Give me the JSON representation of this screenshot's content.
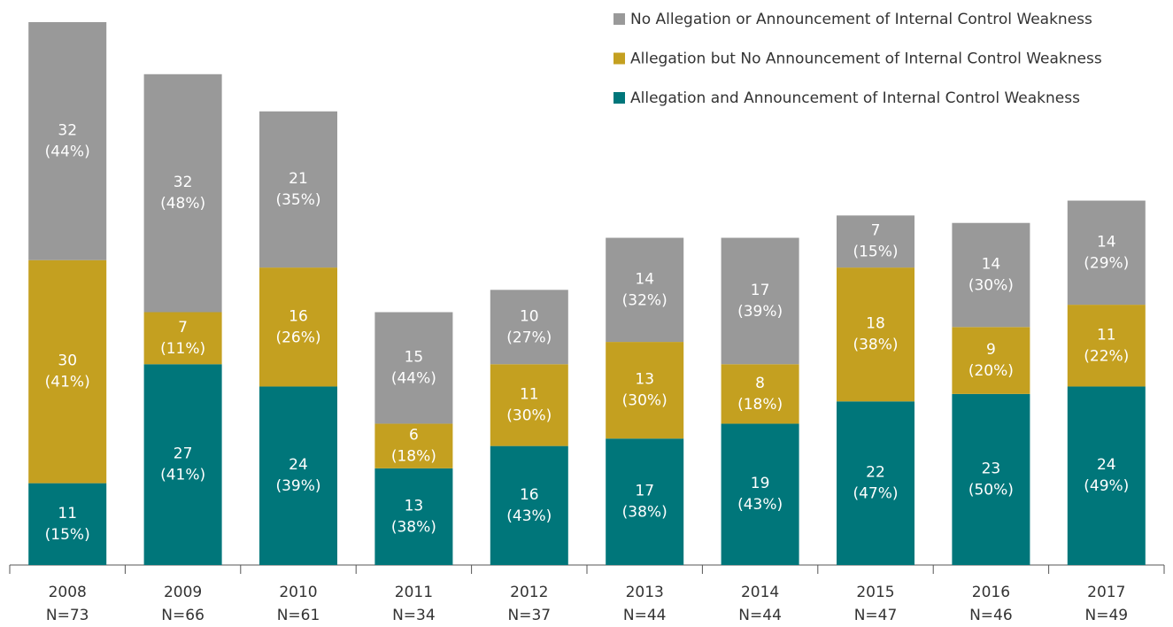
{
  "chart_data": {
    "type": "stacked_bar",
    "categories": [
      "2008",
      "2009",
      "2010",
      "2011",
      "2012",
      "2013",
      "2014",
      "2015",
      "2016",
      "2017"
    ],
    "n_labels": [
      "N=73",
      "N=66",
      "N=61",
      "N=34",
      "N=37",
      "N=44",
      "N=44",
      "N=47",
      "N=46",
      "N=49"
    ],
    "series": [
      {
        "name": "Allegation and Announcement of Internal Control Weakness",
        "color": "#00767a",
        "values": [
          11,
          27,
          24,
          13,
          16,
          17,
          19,
          22,
          23,
          24
        ],
        "share_labels": [
          "(15%)",
          "(41%)",
          "(39%)",
          "(38%)",
          "(43%)",
          "(38%)",
          "(43%)",
          "(47%)",
          "(50%)",
          "(49%)"
        ]
      },
      {
        "name": "Allegation but No Announcement of Internal Control Weakness",
        "color": "#c4a020",
        "values": [
          30,
          7,
          16,
          6,
          11,
          13,
          8,
          18,
          9,
          11
        ],
        "share_labels": [
          "(41%)",
          "(11%)",
          "(26%)",
          "(18%)",
          "(30%)",
          "(30%)",
          "(18%)",
          "(38%)",
          "(20%)",
          "(22%)"
        ]
      },
      {
        "name": "No Allegation or Announcement of Internal Control Weakness",
        "color": "#999999",
        "values": [
          32,
          32,
          21,
          15,
          10,
          14,
          17,
          7,
          14,
          14
        ],
        "share_labels": [
          "(44%)",
          "(48%)",
          "(35%)",
          "(44%)",
          "(27%)",
          "(32%)",
          "(39%)",
          "(15%)",
          "(30%)",
          "(29%)"
        ]
      }
    ],
    "legend": "top-right"
  }
}
